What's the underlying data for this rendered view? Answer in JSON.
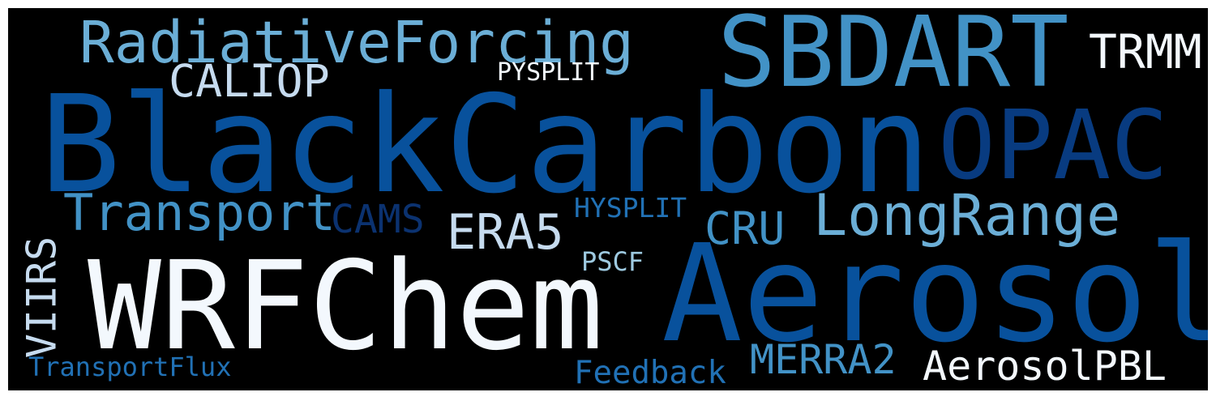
{
  "words": {
    "radiative_forcing": "RadiativeForcing",
    "sbdart": "SBDART",
    "trmm": "TRMM",
    "caliop": "CALIOP",
    "pysplit": "PYSPLIT",
    "black_carbon": "BlackCarbon",
    "opac": "OPAC",
    "transport": "Transport",
    "cams": "CAMS",
    "hysplit": "HYSPLIT",
    "era5": "ERA5",
    "cru": "CRU",
    "long_range": "LongRange",
    "viirs": "VIIRS",
    "pscf": "PSCF",
    "wrf_chem": "WRFChem",
    "aerosol": "Aerosol",
    "merra2": "MERRA2",
    "aerosol_pbl": "AerosolPBL",
    "transport_flux": "TransportFlux",
    "feedback": "Feedback"
  },
  "colors": {
    "background": "#000000",
    "palette": [
      "#f3f8fd",
      "#c6dbef",
      "#9ecae1",
      "#6baed6",
      "#4292c6",
      "#2171b5",
      "#08519c",
      "#083b80"
    ]
  }
}
